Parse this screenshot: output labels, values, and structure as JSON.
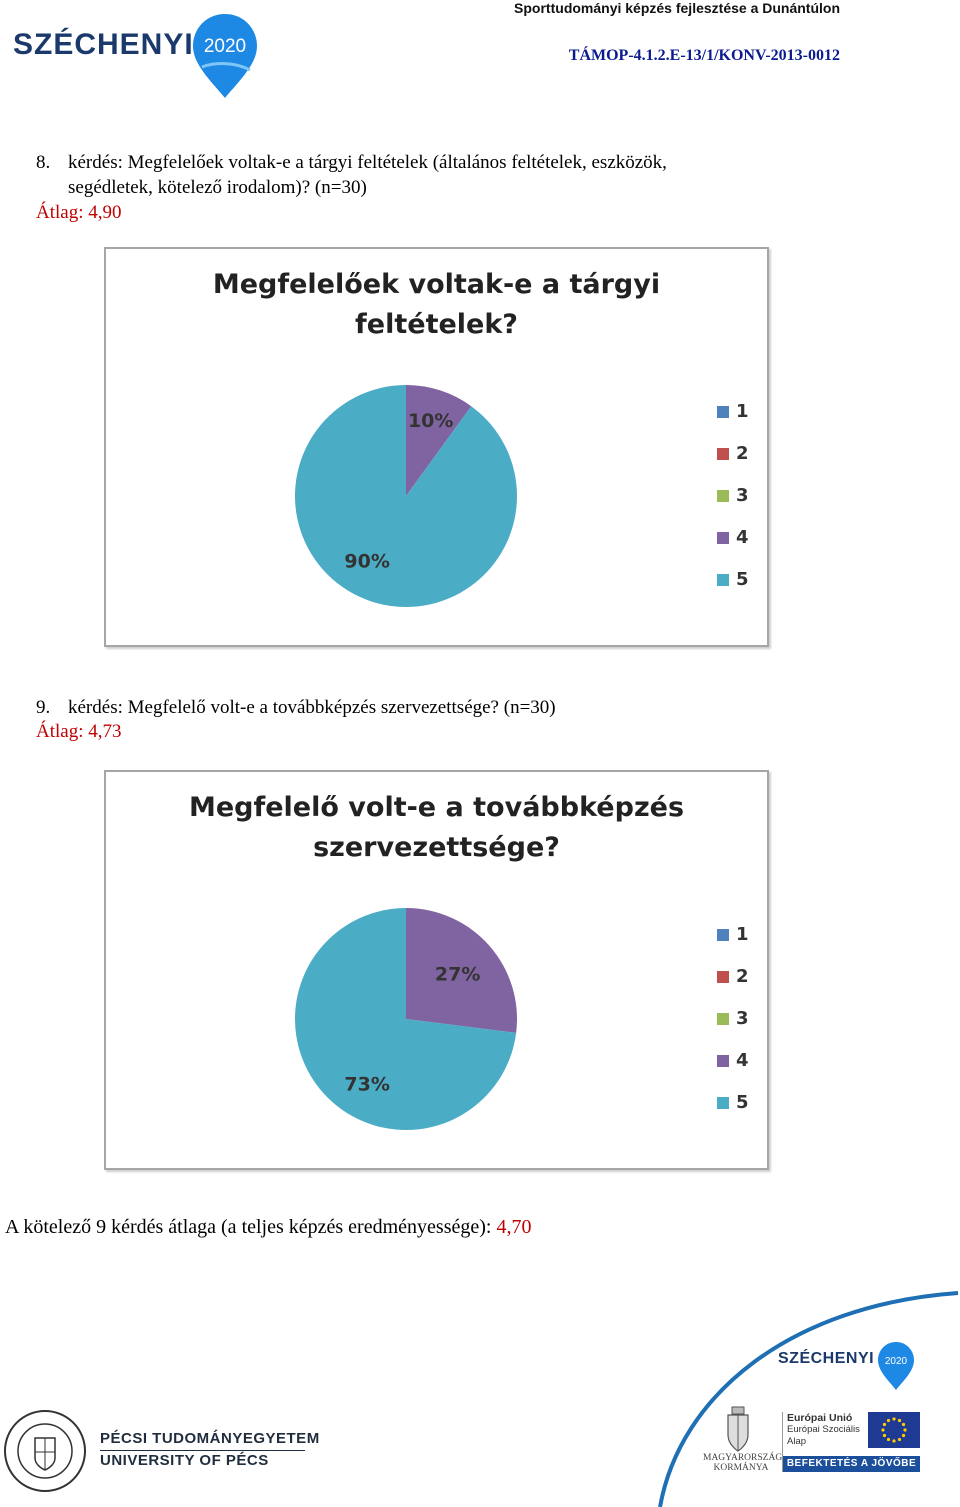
{
  "header": {
    "project_title": "Sporttudományi képzés fejlesztése a Dunántúlon",
    "project_code": "TÁMOP-4.1.2.E-13/1/KONV-2013-0012",
    "logo_text": "SZÉCHENYI",
    "logo_year": "2020"
  },
  "questions": [
    {
      "number": "8.",
      "text_line1": "kérdés: Megfelelőek voltak-e a tárgyi feltételek (általános feltételek, eszközök,",
      "text_line2": "segédletek, kötelező irodalom)? (n=30)",
      "average_label": "Átlag: 4,90"
    },
    {
      "number": "9.",
      "text_line1": "kérdés: Megfelelő volt-e a továbbképzés szervezettsége? (n=30)",
      "average_label": "Átlag: 4,73"
    }
  ],
  "chart_data": [
    {
      "type": "pie",
      "title_line1": "Megfelelőek voltak-e a tárgyi",
      "title_line2": "feltételek?",
      "categories": [
        "1",
        "2",
        "3",
        "4",
        "5"
      ],
      "values": [
        0,
        0,
        0,
        10,
        90
      ],
      "labels": [
        "",
        "",
        "",
        "10%",
        "90%"
      ],
      "colors": [
        "#4f81bd",
        "#c0504d",
        "#9bbb59",
        "#8064a2",
        "#4bacc6"
      ],
      "legend_position": "right"
    },
    {
      "type": "pie",
      "title_line1": "Megfelelő volt-e a továbbképzés",
      "title_line2": "szervezettsége?",
      "categories": [
        "1",
        "2",
        "3",
        "4",
        "5"
      ],
      "values": [
        0,
        0,
        0,
        27,
        73
      ],
      "labels": [
        "",
        "",
        "",
        "27%",
        "73%"
      ],
      "colors": [
        "#4f81bd",
        "#c0504d",
        "#9bbb59",
        "#8064a2",
        "#4bacc6"
      ],
      "legend_position": "right"
    }
  ],
  "summary": {
    "text": "A kötelező 9 kérdés átlaga (a teljes képzés eredményessége): ",
    "value": "4,70"
  },
  "footer": {
    "szechenyi_text": "SZÉCHENYI",
    "szechenyi_year": "2020",
    "university_hu": "PÉCSI TUDOMÁNYEGYETEM",
    "university_en": "UNIVERSITY OF PÉCS",
    "government_line1": "MAGYARORSZÁG",
    "government_line2": "KORMÁNYA",
    "eu_line1": "Európai Unió",
    "eu_line2": "Európai Szociális",
    "eu_line3": "Alap",
    "eu_slogan": "BEFEKTETÉS A JÖVŐBE"
  }
}
